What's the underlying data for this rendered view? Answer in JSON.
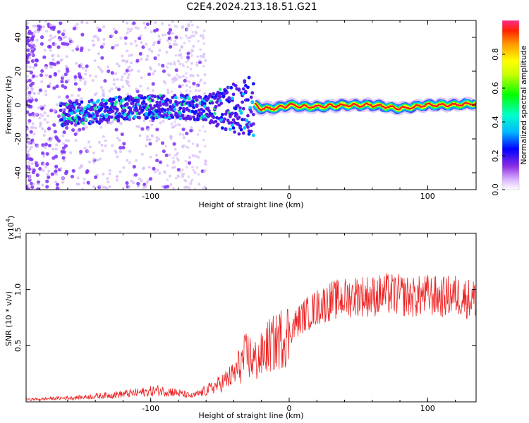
{
  "title": "C2E4.2024.213.18.51.G21",
  "colors": {
    "snr_line": "#ee2222",
    "background": "#ffffff"
  },
  "chart_data": [
    {
      "type": "heatmap",
      "xlabel": "Height of straight line (km)",
      "ylabel": "Frequency (Hz)",
      "xlim": [
        -190,
        135
      ],
      "ylim": [
        -50,
        50
      ],
      "xticks": [
        -100,
        0,
        100
      ],
      "yticks": [
        -40,
        -20,
        0,
        20,
        40
      ],
      "colorbar": {
        "label": "Normalized spectral amplitude",
        "range": [
          0,
          1
        ],
        "ticks": [
          "0.0",
          "0.2",
          "0.4",
          "0.6",
          "0.8"
        ],
        "colormap": "rainbow"
      },
      "centerline": [
        [
          -160,
          -5
        ],
        [
          -140,
          -4
        ],
        [
          -120,
          -2
        ],
        [
          -100,
          -1
        ],
        [
          -80,
          -1
        ],
        [
          -60,
          -2
        ],
        [
          -40,
          -2
        ],
        [
          -25,
          0
        ],
        [
          -20,
          -2
        ],
        [
          -10,
          -2
        ],
        [
          0,
          0
        ],
        [
          10,
          -1
        ],
        [
          20,
          -1
        ],
        [
          40,
          0
        ],
        [
          60,
          0
        ],
        [
          80,
          -2
        ],
        [
          100,
          0
        ],
        [
          120,
          0
        ],
        [
          135,
          1
        ]
      ]
    },
    {
      "type": "line",
      "xlabel": "Height of straight line (km)",
      "ylabel": "SNR (10 * v/v)",
      "y_multiplier": "(x10",
      "y_multiplier_exp": "4",
      "xlim": [
        -190,
        135
      ],
      "ylim": [
        0,
        1.5
      ],
      "xticks": [
        -100,
        0,
        100
      ],
      "yticks": [
        0.5,
        1.0,
        1.5
      ],
      "ytick_labels": [
        "0.5",
        "1.0",
        "1.5"
      ],
      "series": [
        {
          "x": [
            -190,
            -170,
            -150,
            -130,
            -110,
            -95,
            -85,
            -70,
            -60,
            -50,
            -40,
            -35,
            -30,
            -25,
            -20,
            -15,
            -10,
            -5,
            0,
            5,
            10,
            20,
            30,
            40,
            50,
            60,
            70,
            80,
            90,
            100,
            110,
            120,
            130,
            135
          ],
          "y": [
            0.02,
            0.03,
            0.04,
            0.06,
            0.08,
            0.1,
            0.09,
            0.05,
            0.1,
            0.16,
            0.24,
            0.34,
            0.42,
            0.36,
            0.4,
            0.5,
            0.52,
            0.58,
            0.62,
            0.7,
            0.76,
            0.84,
            0.9,
            0.92,
            0.95,
            0.94,
            0.96,
            0.95,
            0.93,
            0.95,
            0.93,
            0.95,
            0.92,
            0.92
          ]
        }
      ]
    }
  ]
}
